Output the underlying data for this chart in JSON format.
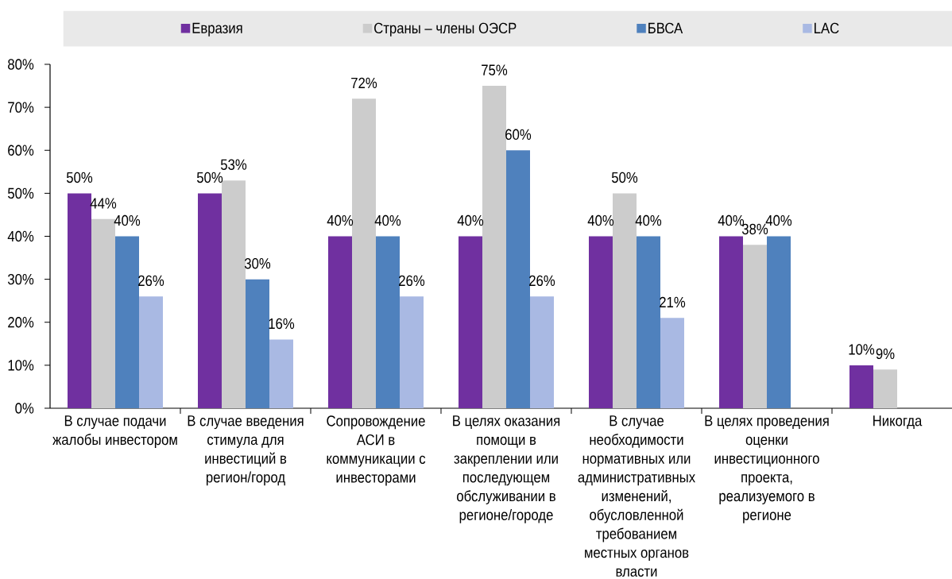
{
  "chart_data": {
    "type": "bar",
    "categories": [
      "В случае подачи жалобы инвестором",
      "В случае введения стимула для инвестиций в регион/город",
      "Сопровождение АСИ в коммуникации с инвесторами",
      "В целях оказания помощи в закреплении или последующем обслуживании в регионе/городе",
      "В случае необходимости нормативных или административных изменений, обусловленной требованием местных органов власти",
      "В целях проведения оценки инвестиционного проекта, реализуемого в регионе",
      "Никогда"
    ],
    "series": [
      {
        "name": "Евразия",
        "color": "#7030a0",
        "values": [
          50,
          50,
          40,
          40,
          40,
          40,
          10
        ],
        "value_labels": [
          "50%",
          "50%",
          "40%",
          "40%",
          "40%",
          "40%",
          "10%"
        ]
      },
      {
        "name": "Страны – члены ОЭСР",
        "color": "#cccccc",
        "values": [
          44,
          53,
          72,
          75,
          50,
          38,
          9
        ],
        "value_labels": [
          "44%",
          "53%",
          "72%",
          "75%",
          "50%",
          "38%",
          "9%"
        ]
      },
      {
        "name": "БВСА",
        "color": "#4f81bd",
        "values": [
          40,
          30,
          40,
          60,
          40,
          40,
          null
        ],
        "value_labels": [
          "40%",
          "30%",
          "40%",
          "60%",
          "40%",
          "40%",
          null
        ]
      },
      {
        "name": "LAC",
        "color": "#a9b9e3",
        "values": [
          26,
          16,
          26,
          26,
          21,
          null,
          null
        ],
        "value_labels": [
          "26%",
          "16%",
          "26%",
          "26%",
          "21%",
          null,
          null
        ]
      }
    ],
    "ylim": [
      0,
      80
    ],
    "yticks": [
      {
        "value": 0,
        "label": "0%"
      },
      {
        "value": 10,
        "label": "10%"
      },
      {
        "value": 20,
        "label": "20%"
      },
      {
        "value": 30,
        "label": "30%"
      },
      {
        "value": 40,
        "label": "40%"
      },
      {
        "value": 50,
        "label": "50%"
      },
      {
        "value": 60,
        "label": "60%"
      },
      {
        "value": 70,
        "label": "70%"
      },
      {
        "value": 80,
        "label": "80%"
      }
    ],
    "legend": "top"
  }
}
